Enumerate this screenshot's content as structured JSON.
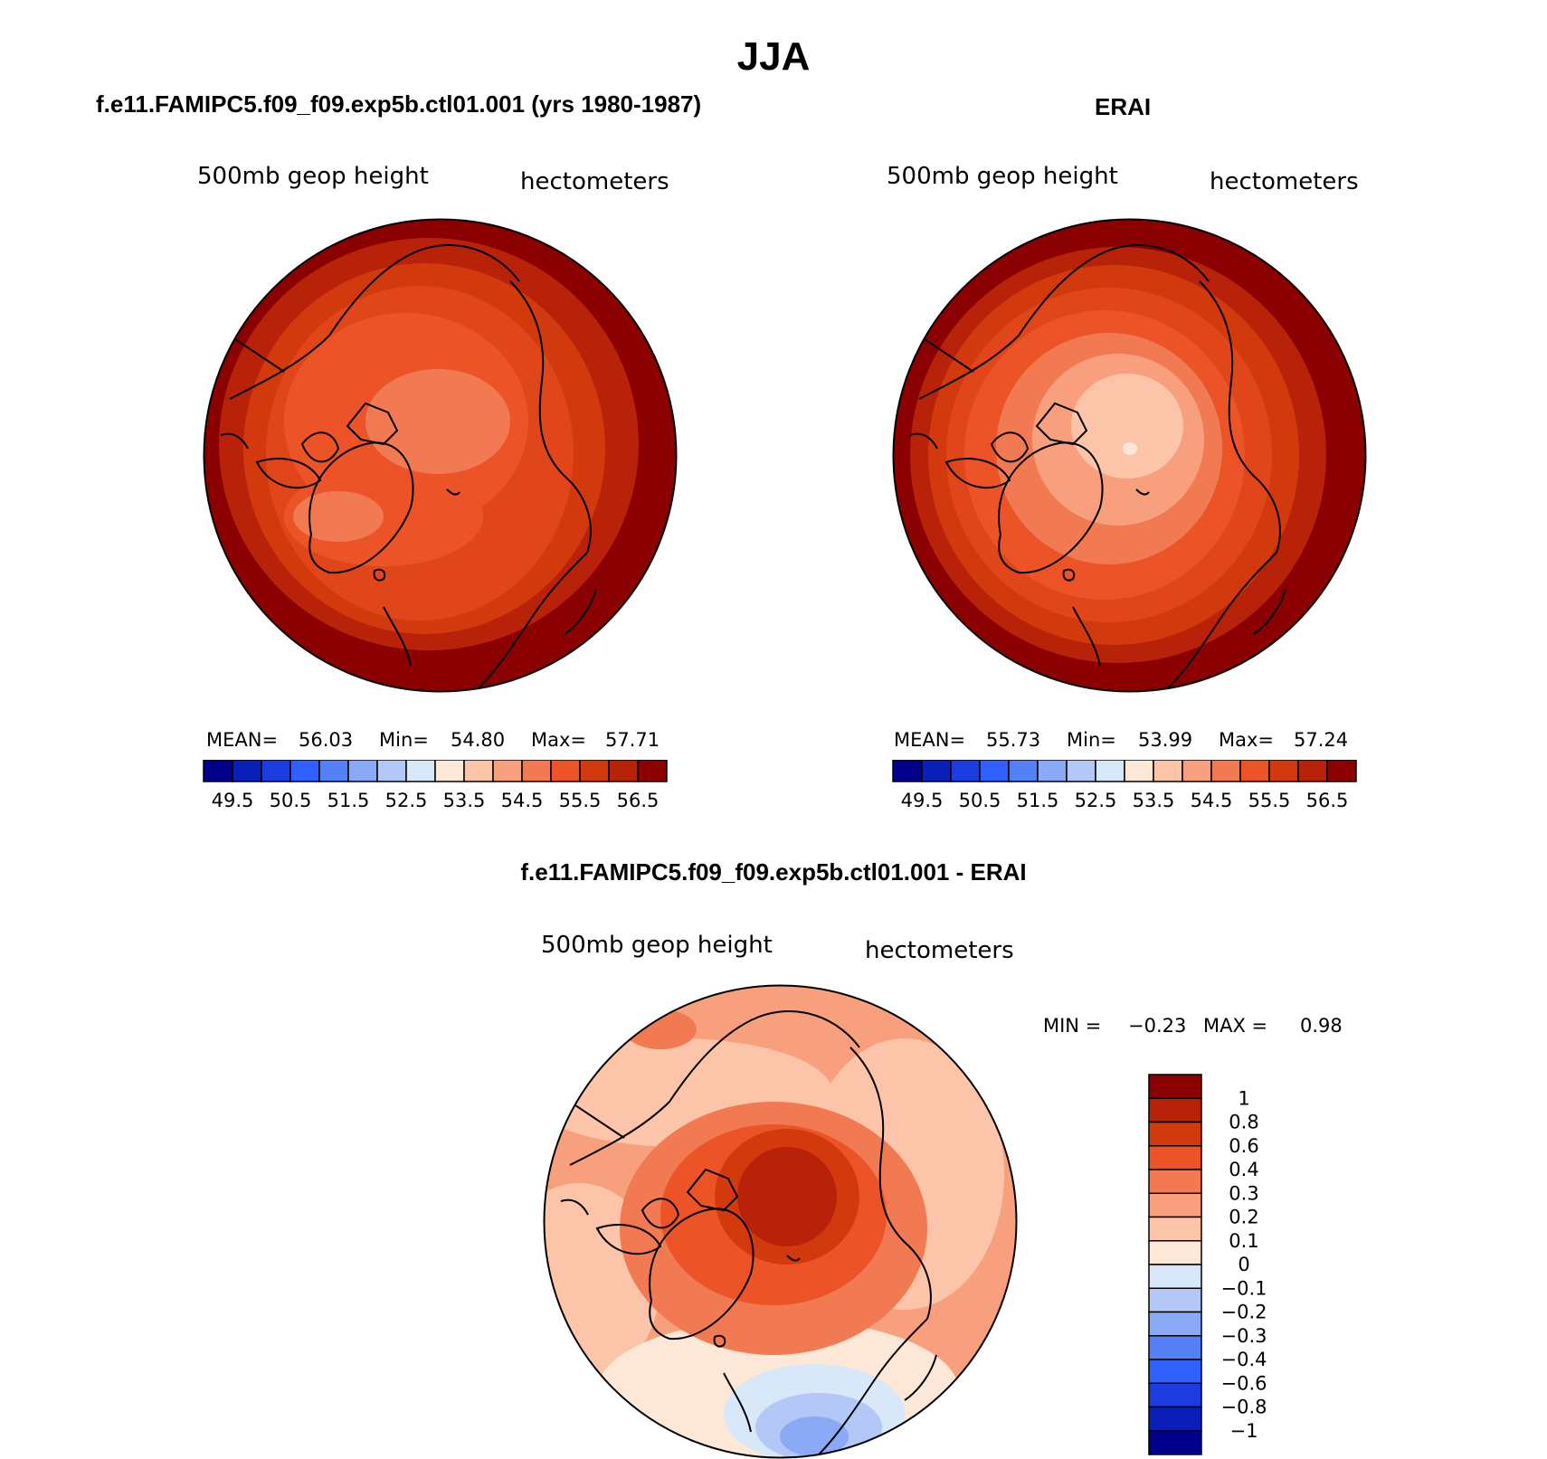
{
  "figure": {
    "season_title": "JJA"
  },
  "panels": {
    "model": {
      "title": "f.e11.FAMIPC5.f09_f09.exp5b.ctl01.001 (yrs 1980-1987)",
      "variable_label": "500mb geop height",
      "units_label": "hectometers",
      "stats": {
        "mean_label": "MEAN=",
        "mean_value": "56.03",
        "min_label": "Min=",
        "min_value": "54.80",
        "max_label": "Max=",
        "max_value": "57.71"
      }
    },
    "obs": {
      "title": "ERAI",
      "variable_label": "500mb geop height",
      "units_label": "hectometers",
      "stats": {
        "mean_label": "MEAN=",
        "mean_value": "55.73",
        "min_label": "Min=",
        "min_value": "53.99",
        "max_label": "Max=",
        "max_value": "57.24"
      }
    },
    "diff": {
      "title": "f.e11.FAMIPC5.f09_f09.exp5b.ctl01.001 - ERAI",
      "variable_label": "500mb geop height",
      "units_label": "hectometers",
      "min_label": "MIN =",
      "min_value": "−0.23",
      "max_label": "MAX =",
      "max_value": "0.98"
    }
  },
  "colors": {
    "full_field": [
      "#00008b",
      "#0a1fb8",
      "#1b3de0",
      "#3060ff",
      "#5580f5",
      "#8aaaf5",
      "#b4c8f8",
      "#d8e8f8",
      "#fde8d8",
      "#fcc4a8",
      "#f8a07e",
      "#f27a52",
      "#ec5428",
      "#d23a0e",
      "#b82208",
      "#8b0000"
    ],
    "difference": [
      "#00008b",
      "#0a1fb8",
      "#1b3de0",
      "#3060ff",
      "#5580f5",
      "#8aaaf5",
      "#b4c8f8",
      "#d8e8f8",
      "#fde8d8",
      "#fcc4a8",
      "#f8a07e",
      "#f27a52",
      "#ec5428",
      "#d23a0e",
      "#b82208",
      "#8b0000"
    ]
  },
  "chart_data": [
    {
      "type": "polar-map-contour",
      "projection": "north polar stereographic",
      "title": "f.e11.FAMIPC5.f09_f09.exp5b.ctl01.001 (yrs 1980-1987)",
      "variable": "500mb geop height",
      "units": "hectometers",
      "colorbar_ticks": [
        "49.5",
        "50.5",
        "51.5",
        "52.5",
        "53.5",
        "54.5",
        "55.5",
        "56.5"
      ],
      "mean": 56.03,
      "min": 54.8,
      "max": 57.71,
      "contour_levels": [
        54.5,
        55.0,
        55.5,
        56.0,
        56.5,
        57.0
      ]
    },
    {
      "type": "polar-map-contour",
      "projection": "north polar stereographic",
      "title": "ERAI",
      "variable": "500mb geop height",
      "units": "hectometers",
      "colorbar_ticks": [
        "49.5",
        "50.5",
        "51.5",
        "52.5",
        "53.5",
        "54.5",
        "55.5",
        "56.5"
      ],
      "mean": 55.73,
      "min": 53.99,
      "max": 57.24,
      "contour_levels": [
        54.0,
        54.5,
        55.0,
        55.5,
        56.0,
        56.5,
        57.0
      ]
    },
    {
      "type": "polar-map-contour",
      "projection": "north polar stereographic",
      "title": "f.e11.FAMIPC5.f09_f09.exp5b.ctl01.001 - ERAI",
      "variable": "500mb geop height",
      "units": "hectometers",
      "colorbar_ticks": [
        "1",
        "0.8",
        "0.6",
        "0.4",
        "0.3",
        "0.2",
        "0.1",
        "0",
        "−0.1",
        "−0.2",
        "−0.3",
        "−0.4",
        "−0.6",
        "−0.8",
        "−1"
      ],
      "min": -0.23,
      "max": 0.98
    }
  ]
}
